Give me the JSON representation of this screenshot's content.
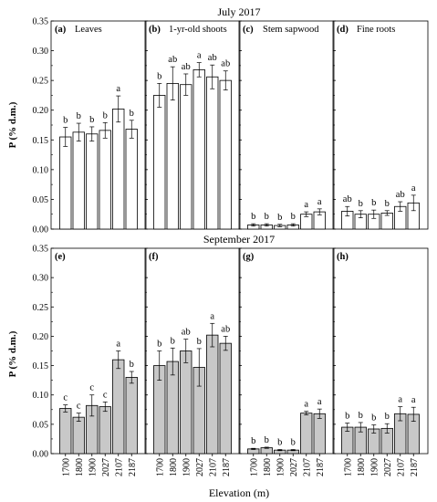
{
  "figure": {
    "top_title": "July 2017",
    "middle_title": "September 2017",
    "y_label": "P (% d.m.)",
    "x_label": "Elevation (m)"
  },
  "chart_data": {
    "type": "bar",
    "categories": [
      "1700",
      "1800",
      "1900",
      "2027",
      "2107",
      "2187"
    ],
    "ylim": [
      0,
      0.35
    ],
    "yticks": [
      "0.00",
      "0.05",
      "0.10",
      "0.15",
      "0.20",
      "0.25",
      "0.30",
      "0.35"
    ],
    "panels": [
      {
        "id": "a",
        "tag": "(a)",
        "label": "Leaves",
        "row": 0,
        "col": 0,
        "fill": "#ffffff",
        "values": [
          0.155,
          0.163,
          0.16,
          0.166,
          0.202,
          0.168
        ],
        "errors": [
          0.016,
          0.015,
          0.012,
          0.013,
          0.022,
          0.015
        ],
        "letters": [
          "b",
          "b",
          "b",
          "b",
          "a",
          "b"
        ]
      },
      {
        "id": "b",
        "tag": "(b)",
        "label": "1-yr-old shoots",
        "row": 0,
        "col": 1,
        "fill": "#ffffff",
        "values": [
          0.225,
          0.245,
          0.243,
          0.268,
          0.256,
          0.25
        ],
        "errors": [
          0.02,
          0.028,
          0.018,
          0.012,
          0.02,
          0.016
        ],
        "letters": [
          "b",
          "ab",
          "ab",
          "a",
          "ab",
          "ab"
        ]
      },
      {
        "id": "c",
        "tag": "(c)",
        "label": "Stem sapwood",
        "row": 0,
        "col": 2,
        "fill": "#ffffff",
        "values": [
          0.007,
          0.007,
          0.006,
          0.007,
          0.025,
          0.029
        ],
        "errors": [
          0.002,
          0.002,
          0.002,
          0.002,
          0.004,
          0.005
        ],
        "letters": [
          "b",
          "b",
          "b",
          "b",
          "a",
          "a"
        ]
      },
      {
        "id": "d",
        "tag": "(d)",
        "label": "Fine roots",
        "row": 0,
        "col": 3,
        "fill": "#ffffff",
        "values": [
          0.03,
          0.025,
          0.025,
          0.027,
          0.038,
          0.044
        ],
        "errors": [
          0.008,
          0.006,
          0.007,
          0.004,
          0.008,
          0.013
        ],
        "letters": [
          "ab",
          "b",
          "b",
          "b",
          "ab",
          "a"
        ]
      },
      {
        "id": "e",
        "tag": "(e)",
        "label": "",
        "row": 1,
        "col": 0,
        "fill": "#c8c8c8",
        "values": [
          0.077,
          0.062,
          0.082,
          0.08,
          0.16,
          0.13
        ],
        "errors": [
          0.006,
          0.007,
          0.018,
          0.008,
          0.015,
          0.01
        ],
        "letters": [
          "c",
          "c",
          "c",
          "c",
          "a",
          "b"
        ]
      },
      {
        "id": "f",
        "tag": "(f)",
        "label": "",
        "row": 1,
        "col": 1,
        "fill": "#c8c8c8",
        "values": [
          0.15,
          0.157,
          0.175,
          0.147,
          0.202,
          0.188
        ],
        "errors": [
          0.025,
          0.023,
          0.02,
          0.032,
          0.02,
          0.012
        ],
        "letters": [
          "b",
          "b",
          "ab",
          "b",
          "a",
          "ab"
        ]
      },
      {
        "id": "g",
        "tag": "(g)",
        "label": "",
        "row": 1,
        "col": 2,
        "fill": "#c8c8c8",
        "values": [
          0.008,
          0.01,
          0.006,
          0.006,
          0.069,
          0.068
        ],
        "errors": [
          0.001,
          0.001,
          0.001,
          0.001,
          0.003,
          0.008
        ],
        "letters": [
          "b",
          "b",
          "b",
          "b",
          "a",
          "a"
        ]
      },
      {
        "id": "h",
        "tag": "(h)",
        "label": "",
        "row": 1,
        "col": 3,
        "fill": "#c8c8c8",
        "values": [
          0.045,
          0.045,
          0.042,
          0.043,
          0.068,
          0.067
        ],
        "errors": [
          0.007,
          0.008,
          0.007,
          0.008,
          0.012,
          0.012
        ],
        "letters": [
          "b",
          "b",
          "b",
          "b",
          "a",
          "a"
        ]
      }
    ]
  }
}
